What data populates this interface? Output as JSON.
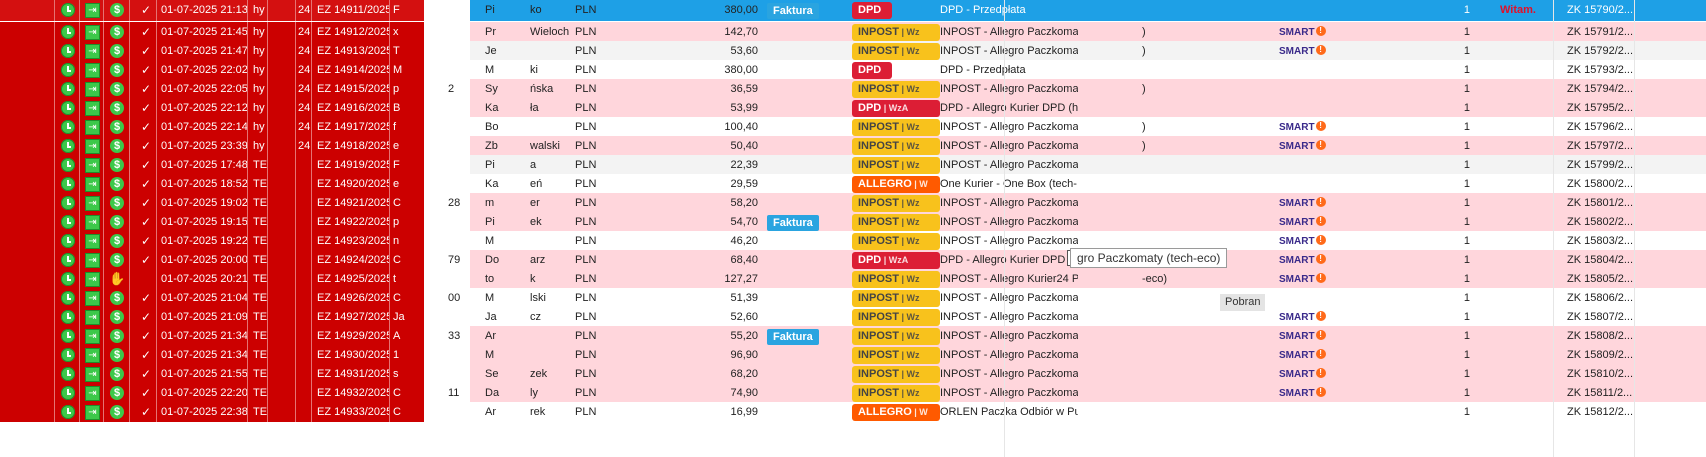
{
  "header": {
    "witam": "Witam."
  },
  "tooltip": {
    "text": "gro Paczkomaty (tech-eco)"
  },
  "pobran_label": "Pobran",
  "rows": [
    {
      "style": "sel",
      "icons": "cdd",
      "check": "✓",
      "date": "01-07-2025 21:13",
      "c1": "hy",
      "c2": "24",
      "ez": "EZ 14911/2025",
      "c3": "F",
      "c4": "",
      "name": "Pi",
      "name2": "ko",
      "cur": "PLN",
      "amt": "380,00",
      "faktura": "Faktura",
      "carrier": "dpd",
      "carrier_label": "DPD",
      "carrier_sub": "",
      "ship": "DPD - Przedpłata",
      "ship_tail": "",
      "smart": "",
      "qty": "1",
      "zk": "ZK 15790/2..."
    },
    {
      "style": "pink",
      "icons": "cdd",
      "check": "✓",
      "date": "01-07-2025 21:45",
      "c1": "hy",
      "c2": "24",
      "ez": "EZ 14912/2025",
      "c3": "x",
      "c4": "",
      "name": "Pr",
      "name2": "Wieloch",
      "cur": "PLN",
      "amt": "142,70",
      "faktura": "",
      "carrier": "inpost",
      "carrier_label": "INPOST",
      "carrier_sub": "| Wz",
      "ship": "INPOST - Allegro Paczkomat",
      "ship_tail": ")",
      "smart": "SMART",
      "qty": "1",
      "zk": "ZK 15791/2..."
    },
    {
      "style": "grey",
      "icons": "cdd",
      "check": "✓",
      "date": "01-07-2025 21:47",
      "c1": "hy",
      "c2": "24",
      "ez": "EZ 14913/2025",
      "c3": "T",
      "c4": "",
      "name": "Je",
      "name2": "",
      "cur": "PLN",
      "amt": "53,60",
      "faktura": "",
      "carrier": "inpost",
      "carrier_label": "INPOST",
      "carrier_sub": "| Wz",
      "ship": "INPOST - Allegro Paczkomat",
      "ship_tail": ")",
      "smart": "SMART",
      "qty": "1",
      "zk": "ZK 15792/2..."
    },
    {
      "style": "white",
      "icons": "cdd",
      "check": "✓",
      "date": "01-07-2025 22:02",
      "c1": "hy",
      "c2": "24",
      "ez": "EZ 14914/2025",
      "c3": "M",
      "c4": "",
      "name": "M",
      "name2": "ki",
      "cur": "PLN",
      "amt": "380,00",
      "faktura": "",
      "carrier": "dpd",
      "carrier_label": "DPD",
      "carrier_sub": "",
      "ship": "DPD - Przedpłata",
      "ship_tail": "",
      "smart": "",
      "qty": "1",
      "zk": "ZK 15793/2..."
    },
    {
      "style": "pink",
      "icons": "cdd",
      "check": "✓",
      "date": "01-07-2025 22:05",
      "c1": "hy",
      "c2": "24",
      "ez": "EZ 14915/2025",
      "c3": "p",
      "c4": "2",
      "name": "Sy",
      "name2": "ńska",
      "cur": "PLN",
      "amt": "36,59",
      "faktura": "",
      "carrier": "inpost",
      "carrier_label": "INPOST",
      "carrier_sub": "| Wz",
      "ship": "INPOST - Allegro Paczkomat",
      "ship_tail": ")",
      "smart": "",
      "qty": "1",
      "zk": "ZK 15794/2..."
    },
    {
      "style": "pink",
      "icons": "cdd",
      "check": "✓",
      "date": "01-07-2025 22:12",
      "c1": "hy",
      "c2": "24",
      "ez": "EZ 14916/2025",
      "c3": "B",
      "c4": "",
      "name": "Ka",
      "name2": "ła",
      "cur": "PLN",
      "amt": "53,99",
      "faktura": "",
      "carrier": "dpd",
      "carrier_label": "DPD",
      "carrier_sub": "| WzA",
      "ship": "DPD - Allegro Kurier DPD (h",
      "ship_tail": "",
      "smart": "",
      "qty": "1",
      "zk": "ZK 15795/2..."
    },
    {
      "style": "white",
      "icons": "cdd",
      "check": "✓",
      "date": "01-07-2025 22:14",
      "c1": "hy",
      "c2": "24",
      "ez": "EZ 14917/2025",
      "c3": "f",
      "c4": "",
      "name": "Bo",
      "name2": "",
      "cur": "PLN",
      "amt": "100,40",
      "faktura": "",
      "carrier": "inpost",
      "carrier_label": "INPOST",
      "carrier_sub": "| Wz",
      "ship": "INPOST - Allegro Paczkomat",
      "ship_tail": ")",
      "smart": "SMART",
      "qty": "1",
      "zk": "ZK 15796/2..."
    },
    {
      "style": "pink",
      "icons": "cdd",
      "check": "✓",
      "date": "01-07-2025 23:39",
      "c1": "hy",
      "c2": "24",
      "ez": "EZ 14918/2025",
      "c3": "e",
      "c4": "",
      "name": "Zb",
      "name2": "walski",
      "cur": "PLN",
      "amt": "50,40",
      "faktura": "",
      "carrier": "inpost",
      "carrier_label": "INPOST",
      "carrier_sub": "| Wz",
      "ship": "INPOST - Allegro Paczkomat",
      "ship_tail": ")",
      "smart": "SMART",
      "qty": "1",
      "zk": "ZK 15797/2..."
    },
    {
      "style": "grey",
      "icons": "cdd",
      "check": "✓",
      "date": "01-07-2025 17:48",
      "c1": "TE",
      "c2": "",
      "ez": "EZ 14919/2025",
      "c3": "F",
      "c4": "",
      "name": "Pi",
      "name2": "a",
      "cur": "PLN",
      "amt": "22,39",
      "faktura": "",
      "carrier": "inpost",
      "carrier_label": "INPOST",
      "carrier_sub": "| Wz",
      "ship": "INPOST - Allegro Paczkomat",
      "ship_tail": "",
      "smart": "",
      "qty": "1",
      "zk": "ZK 15799/2..."
    },
    {
      "style": "white",
      "icons": "cdd",
      "check": "✓",
      "date": "01-07-2025 18:52",
      "c1": "TE",
      "c2": "",
      "ez": "EZ 14920/2025",
      "c3": "e",
      "c4": "",
      "name": "Ka",
      "name2": "eń",
      "cur": "PLN",
      "amt": "29,59",
      "faktura": "",
      "carrier": "allegro",
      "carrier_label": "ALLEGRO",
      "carrier_sub": "| W",
      "ship": "One Kurier - One Box (tech-",
      "ship_tail": "",
      "smart": "",
      "qty": "1",
      "zk": "ZK 15800/2..."
    },
    {
      "style": "pink",
      "icons": "cdd",
      "check": "✓",
      "date": "01-07-2025 19:02",
      "c1": "TE",
      "c2": "",
      "ez": "EZ 14921/2025",
      "c3": "C",
      "c4": "28",
      "name": "m",
      "name2": "er",
      "cur": "PLN",
      "amt": "58,20",
      "faktura": "",
      "carrier": "inpost",
      "carrier_label": "INPOST",
      "carrier_sub": "| Wz",
      "ship": "INPOST - Allegro Paczkomat",
      "ship_tail": "",
      "smart": "SMART",
      "qty": "1",
      "zk": "ZK 15801/2..."
    },
    {
      "style": "pink",
      "icons": "cdd",
      "check": "✓",
      "date": "01-07-2025 19:15",
      "c1": "TE",
      "c2": "",
      "ez": "EZ 14922/2025",
      "c3": "p",
      "c4": "",
      "name": "Pi",
      "name2": "ek",
      "cur": "PLN",
      "amt": "54,70",
      "faktura": "Faktura",
      "carrier": "inpost",
      "carrier_label": "INPOST",
      "carrier_sub": "| Wz",
      "ship": "INPOST - Allegro Paczkomat",
      "ship_tail": "",
      "smart": "SMART",
      "qty": "1",
      "zk": "ZK 15802/2..."
    },
    {
      "style": "white",
      "icons": "cdd",
      "check": "✓",
      "date": "01-07-2025 19:22",
      "c1": "TE",
      "c2": "",
      "ez": "EZ 14923/2025",
      "c3": "n",
      "c4": "",
      "name": "M",
      "name2": "",
      "cur": "PLN",
      "amt": "46,20",
      "faktura": "",
      "carrier": "inpost",
      "carrier_label": "INPOST",
      "carrier_sub": "| Wz",
      "ship": "INPOST - Allegro Paczkomat",
      "ship_tail": "",
      "smart": "SMART",
      "qty": "1",
      "zk": "ZK 15803/2..."
    },
    {
      "style": "pink",
      "icons": "cdd",
      "check": "✓",
      "date": "01-07-2025 20:00",
      "c1": "TE",
      "c2": "",
      "ez": "EZ 14924/2025",
      "c3": "C",
      "c4": "79",
      "name": "Do",
      "name2": "arz",
      "cur": "PLN",
      "amt": "68,40",
      "faktura": "",
      "carrier": "dpd",
      "carrier_label": "DPD",
      "carrier_sub": "| WzA",
      "ship": "DPD - Allegro Kurier DPD (te",
      "ship_tail": "",
      "smart": "SMART",
      "qty": "1",
      "zk": "ZK 15804/2..."
    },
    {
      "style": "pink",
      "icons": "chd",
      "check": "",
      "date": "01-07-2025 20:21",
      "c1": "TE",
      "c2": "",
      "ez": "EZ 14925/2025",
      "c3": "t",
      "c4": "",
      "name": "to",
      "name2": "k",
      "cur": "PLN",
      "amt": "127,27",
      "faktura": "",
      "carrier": "inpost",
      "carrier_label": "INPOST",
      "carrier_sub": "| Wz",
      "ship": "INPOST - Allegro Kurier24 P",
      "ship_tail": "-eco)",
      "smart": "SMART",
      "qty": "1",
      "zk": "ZK 15805/2..."
    },
    {
      "style": "white",
      "icons": "cdd",
      "check": "✓",
      "date": "01-07-2025 21:04",
      "c1": "TE",
      "c2": "",
      "ez": "EZ 14926/2025",
      "c3": "C",
      "c4": "00",
      "name": "M",
      "name2": "lski",
      "cur": "PLN",
      "amt": "51,39",
      "faktura": "",
      "carrier": "inpost",
      "carrier_label": "INPOST",
      "carrier_sub": "| Wz",
      "ship": "INPOST - Allegro Paczkomat",
      "ship_tail": "",
      "smart": "",
      "qty": "1",
      "zk": "ZK 15806/2..."
    },
    {
      "style": "white",
      "icons": "cdd",
      "check": "✓",
      "date": "01-07-2025 21:09",
      "c1": "TE",
      "c2": "",
      "ez": "EZ 14927/2025",
      "c3": "Ja",
      "c4": "",
      "name": "Ja",
      "name2": "cz",
      "cur": "PLN",
      "amt": "52,60",
      "faktura": "",
      "carrier": "inpost",
      "carrier_label": "INPOST",
      "carrier_sub": "| Wz",
      "ship": "INPOST - Allegro Paczkomat",
      "ship_tail": "",
      "smart": "SMART",
      "qty": "1",
      "zk": "ZK 15807/2..."
    },
    {
      "style": "pink",
      "icons": "cdd",
      "check": "✓",
      "date": "01-07-2025 21:34",
      "c1": "TE",
      "c2": "",
      "ez": "EZ 14929/2025",
      "c3": "A",
      "c4": "33",
      "name": "Ar",
      "name2": "",
      "cur": "PLN",
      "amt": "55,20",
      "faktura": "Faktura",
      "carrier": "inpost",
      "carrier_label": "INPOST",
      "carrier_sub": "| Wz",
      "ship": "INPOST - Allegro Paczkomat",
      "ship_tail": "",
      "smart": "SMART",
      "qty": "1",
      "zk": "ZK 15808/2..."
    },
    {
      "style": "pink",
      "icons": "cdd",
      "check": "✓",
      "date": "01-07-2025 21:34",
      "c1": "TE",
      "c2": "",
      "ez": "EZ 14930/2025",
      "c3": "1",
      "c4": "",
      "name": "M",
      "name2": "",
      "cur": "PLN",
      "amt": "96,90",
      "faktura": "",
      "carrier": "inpost",
      "carrier_label": "INPOST",
      "carrier_sub": "| Wz",
      "ship": "INPOST - Allegro Paczkomat",
      "ship_tail": "",
      "smart": "SMART",
      "qty": "1",
      "zk": "ZK 15809/2..."
    },
    {
      "style": "pink",
      "icons": "cdd",
      "check": "✓",
      "date": "01-07-2025 21:55",
      "c1": "TE",
      "c2": "",
      "ez": "EZ 14931/2025",
      "c3": "s",
      "c4": "",
      "name": "Se",
      "name2": "zek",
      "cur": "PLN",
      "amt": "68,20",
      "faktura": "",
      "carrier": "inpost",
      "carrier_label": "INPOST",
      "carrier_sub": "| Wz",
      "ship": "INPOST - Allegro Paczkomat",
      "ship_tail": "",
      "smart": "SMART",
      "qty": "1",
      "zk": "ZK 15810/2..."
    },
    {
      "style": "pink",
      "icons": "cdd",
      "check": "✓",
      "date": "01-07-2025 22:20",
      "c1": "TE",
      "c2": "",
      "ez": "EZ 14932/2025",
      "c3": "C",
      "c4": "11",
      "name": "Da",
      "name2": "ly",
      "cur": "PLN",
      "amt": "74,90",
      "faktura": "",
      "carrier": "inpost",
      "carrier_label": "INPOST",
      "carrier_sub": "| Wz",
      "ship": "INPOST - Allegro Paczkomat",
      "ship_tail": "",
      "smart": "SMART",
      "qty": "1",
      "zk": "ZK 15811/2..."
    },
    {
      "style": "white",
      "icons": "cdd",
      "check": "✓",
      "date": "01-07-2025 22:38",
      "c1": "TE",
      "c2": "",
      "ez": "EZ 14933/2025",
      "c3": "C",
      "c4": "",
      "name": "Ar",
      "name2": "rek",
      "cur": "PLN",
      "amt": "16,99",
      "faktura": "",
      "carrier": "allegro",
      "carrier_label": "ALLEGRO",
      "carrier_sub": "| W",
      "ship": "ORLEN Paczka Odbiór w Pun",
      "ship_tail": "",
      "smart": "",
      "qty": "1",
      "zk": "ZK 15812/2..."
    }
  ]
}
